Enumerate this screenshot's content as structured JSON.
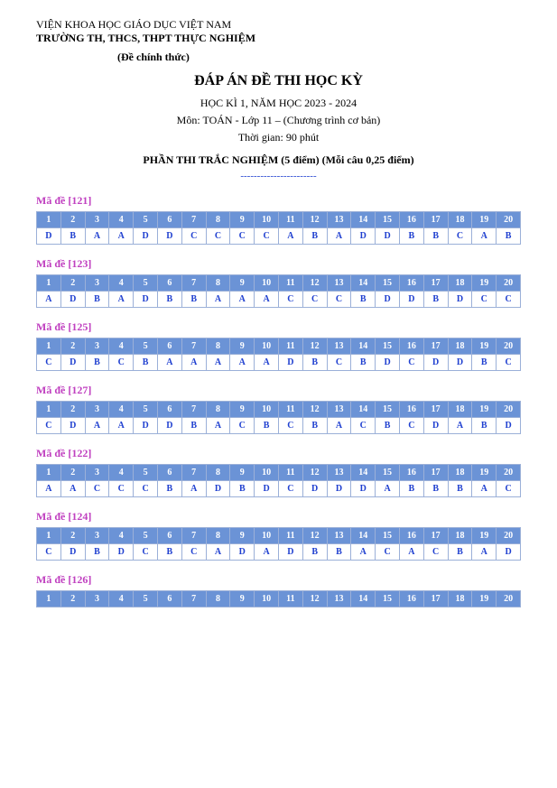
{
  "header": {
    "org": "VIỆN KHOA HỌC GIÁO DỤC VIỆT NAM",
    "school": "TRƯỜNG TH, THCS, THPT THỰC NGHIỆM",
    "official": "(Đề chính thức)"
  },
  "title": "ĐÁP ÁN ĐỀ THI HỌC KỲ",
  "subhead1": "HỌC KÌ 1, NĂM HỌC 2023 - 2024",
  "subhead2": "Môn: TOÁN - Lớp 11 – (Chương trình cơ bản)",
  "subhead3": "Thời gian: 90 phút",
  "section_title": "PHẦN THI TRẮC NGHIỆM (5 điểm) (Mỗi câu 0,25 điểm)",
  "divider": "-----------------------",
  "numbers": [
    "1",
    "2",
    "3",
    "4",
    "5",
    "6",
    "7",
    "8",
    "9",
    "10",
    "11",
    "12",
    "13",
    "14",
    "15",
    "16",
    "17",
    "18",
    "19",
    "20"
  ],
  "exams": [
    {
      "code": "Mã đề [121]",
      "answers": [
        "D",
        "B",
        "A",
        "A",
        "D",
        "D",
        "C",
        "C",
        "C",
        "C",
        "A",
        "B",
        "A",
        "D",
        "D",
        "B",
        "B",
        "C",
        "A",
        "B"
      ]
    },
    {
      "code": "Mã đề [123]",
      "answers": [
        "A",
        "D",
        "B",
        "A",
        "D",
        "B",
        "B",
        "A",
        "A",
        "A",
        "C",
        "C",
        "C",
        "B",
        "D",
        "D",
        "B",
        "D",
        "C",
        "C"
      ]
    },
    {
      "code": "Mã đề [125]",
      "answers": [
        "C",
        "D",
        "B",
        "C",
        "B",
        "A",
        "A",
        "A",
        "A",
        "A",
        "D",
        "B",
        "C",
        "B",
        "D",
        "C",
        "D",
        "D",
        "B",
        "C"
      ]
    },
    {
      "code": "Mã đề [127]",
      "answers": [
        "C",
        "D",
        "A",
        "A",
        "D",
        "D",
        "B",
        "A",
        "C",
        "B",
        "C",
        "B",
        "A",
        "C",
        "B",
        "C",
        "D",
        "A",
        "B",
        "D"
      ]
    },
    {
      "code": "Mã đề [122]",
      "answers": [
        "A",
        "A",
        "C",
        "C",
        "C",
        "B",
        "A",
        "D",
        "B",
        "D",
        "C",
        "D",
        "D",
        "D",
        "A",
        "B",
        "B",
        "B",
        "A",
        "C"
      ]
    },
    {
      "code": "Mã đề [124]",
      "answers": [
        "C",
        "D",
        "B",
        "D",
        "C",
        "B",
        "C",
        "A",
        "D",
        "A",
        "D",
        "B",
        "B",
        "A",
        "C",
        "A",
        "C",
        "B",
        "A",
        "D"
      ]
    },
    {
      "code": "Mã đề [126]",
      "answers": null
    }
  ],
  "style": {
    "header_bg": "#6b93d6",
    "header_text": "#ffffff",
    "cell_text": "#2040d0",
    "cell_border": "#9bb0d8",
    "code_color": "#c040c0",
    "body_bg": "#ffffff"
  }
}
